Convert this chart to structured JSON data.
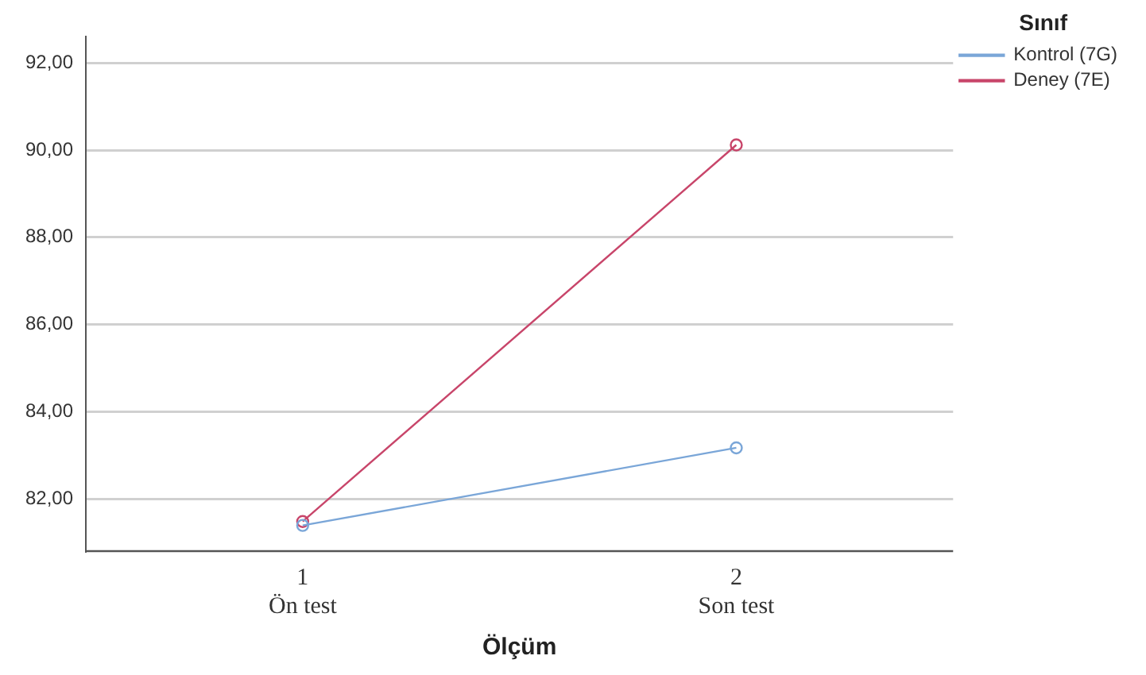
{
  "chart_data": {
    "type": "line",
    "xlabel": "Ölçüm",
    "legend_title": "Sınıf",
    "categories": [
      "1\nÖn test",
      "2\nSon test"
    ],
    "series": [
      {
        "name": "Kontrol (7G)",
        "color": "#7aa6d8",
        "values": [
          81.39,
          83.17
        ]
      },
      {
        "name": "Deney (7E)",
        "color": "#c8456a",
        "values": [
          81.48,
          90.12
        ]
      }
    ],
    "ylim": [
      80.8,
      92.6
    ],
    "yticks": [
      {
        "value": 82,
        "label": "82,00"
      },
      {
        "value": 84,
        "label": "84,00"
      },
      {
        "value": 86,
        "label": "86,00"
      },
      {
        "value": 88,
        "label": "88,00"
      },
      {
        "value": 90,
        "label": "90,00"
      },
      {
        "value": 92,
        "label": "92,00"
      }
    ],
    "grid": "y",
    "legend": "top right",
    "marker": "circle",
    "line_style": "solid"
  }
}
